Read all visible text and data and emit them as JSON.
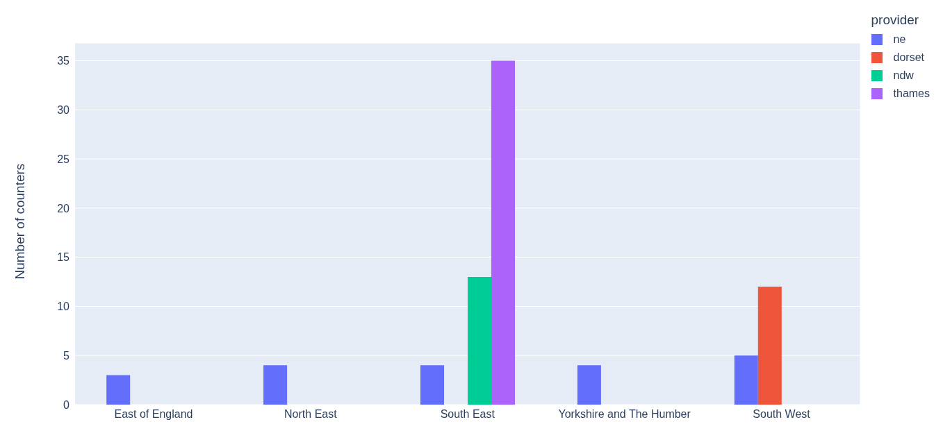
{
  "chart_data": {
    "type": "bar",
    "ylabel": "Number of counters",
    "legend_title": "provider",
    "legend": "top right",
    "grid": "y",
    "categories": [
      "East of England",
      "North East",
      "South East",
      "Yorkshire and The Humber",
      "South West"
    ],
    "series": [
      {
        "name": "ne",
        "color": "#636efa",
        "values": [
          3,
          4,
          4,
          4,
          5
        ]
      },
      {
        "name": "dorset",
        "color": "#ef553b",
        "values": [
          null,
          null,
          null,
          null,
          12
        ]
      },
      {
        "name": "ndw",
        "color": "#00cc96",
        "values": [
          null,
          null,
          13,
          null,
          null
        ]
      },
      {
        "name": "thames",
        "color": "#ab63fa",
        "values": [
          null,
          null,
          35,
          null,
          null
        ]
      }
    ],
    "ylim": [
      0,
      36.8
    ],
    "yticks": [
      0,
      5,
      10,
      15,
      20,
      25,
      30,
      35
    ]
  }
}
